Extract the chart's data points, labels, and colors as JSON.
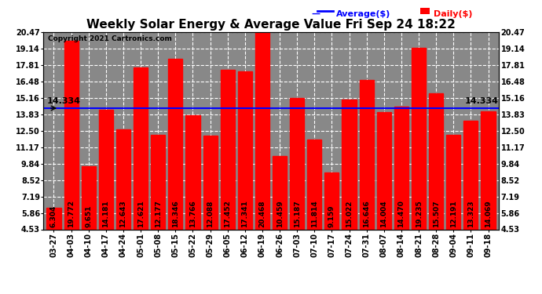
{
  "title": "Weekly Solar Energy & Average Value Fri Sep 24 18:22",
  "copyright": "Copyright 2021 Cartronics.com",
  "legend_avg": "Average($)",
  "legend_daily": "Daily($)",
  "average_value": 14.334,
  "categories": [
    "03-27",
    "04-03",
    "04-10",
    "04-17",
    "04-24",
    "05-01",
    "05-08",
    "05-15",
    "05-22",
    "05-29",
    "06-05",
    "06-12",
    "06-19",
    "06-26",
    "07-03",
    "07-10",
    "07-17",
    "07-24",
    "07-31",
    "08-07",
    "08-14",
    "08-21",
    "08-28",
    "09-04",
    "09-11",
    "09-18"
  ],
  "values": [
    6.304,
    19.772,
    9.651,
    14.181,
    12.643,
    17.621,
    12.177,
    18.346,
    13.766,
    12.088,
    17.452,
    17.341,
    20.468,
    10.459,
    15.187,
    11.814,
    9.159,
    15.022,
    16.646,
    14.004,
    14.47,
    19.235,
    15.507,
    12.191,
    13.323,
    14.069
  ],
  "bar_color": "#ff0000",
  "avg_line_color": "#0000ff",
  "ylim_min": 4.53,
  "ylim_max": 20.47,
  "yticks": [
    4.53,
    5.86,
    7.19,
    8.52,
    9.84,
    11.17,
    12.5,
    13.83,
    15.16,
    16.48,
    17.81,
    19.14,
    20.47
  ],
  "plot_bg_color": "#888888",
  "fig_bg_color": "#ffffff",
  "grid_color": "#ffffff",
  "title_fontsize": 11,
  "tick_fontsize": 7,
  "bar_label_fontsize": 6.5,
  "avg_label": "14.334",
  "avg_label_color": "#000000",
  "legend_avg_color": "#0000ff",
  "legend_daily_color": "#ff0000"
}
